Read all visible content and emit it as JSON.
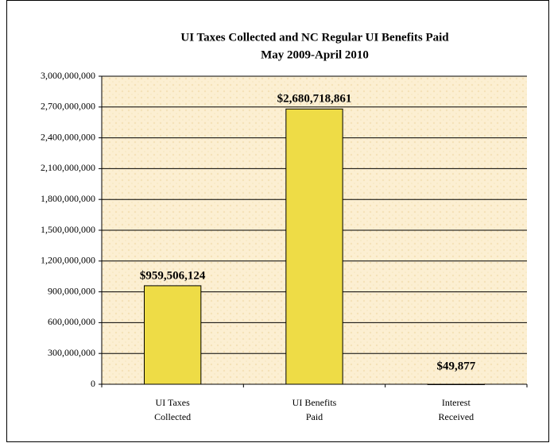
{
  "chart_data": {
    "type": "bar",
    "title": "UI Taxes Collected and NC Regular UI Benefits Paid",
    "subtitle": "May 2009-April 2010",
    "categories": [
      "UI Taxes\nCollected",
      "UI Benefits\nPaid",
      "Interest\nReceived"
    ],
    "values": [
      959506124,
      2680718861,
      49877
    ],
    "value_labels": [
      "$959,506,124",
      "$2,680,718,861",
      "$49,877"
    ],
    "color": "#eedc46",
    "ylim": [
      0,
      3000000000
    ],
    "yticks": [
      0,
      {
        "value": 300000000,
        "label": "300,000,000"
      },
      {
        "value": 600000000,
        "label": "600,000,000"
      },
      {
        "value": 900000000,
        "label": "900,000,000"
      },
      {
        "value": 1200000000,
        "label": "1,200,000,000"
      },
      {
        "value": 1500000000,
        "label": "1,500,000,000"
      },
      {
        "value": 1800000000,
        "label": "1,800,000,000"
      },
      {
        "value": 2100000000,
        "label": "2,100,000,000"
      },
      {
        "value": 2400000000,
        "label": "2,400,000,000"
      },
      {
        "value": 2700000000,
        "label": "2,700,000,000"
      },
      {
        "value": 3000000000,
        "label": "3,000,000,000"
      }
    ],
    "grid": true
  }
}
